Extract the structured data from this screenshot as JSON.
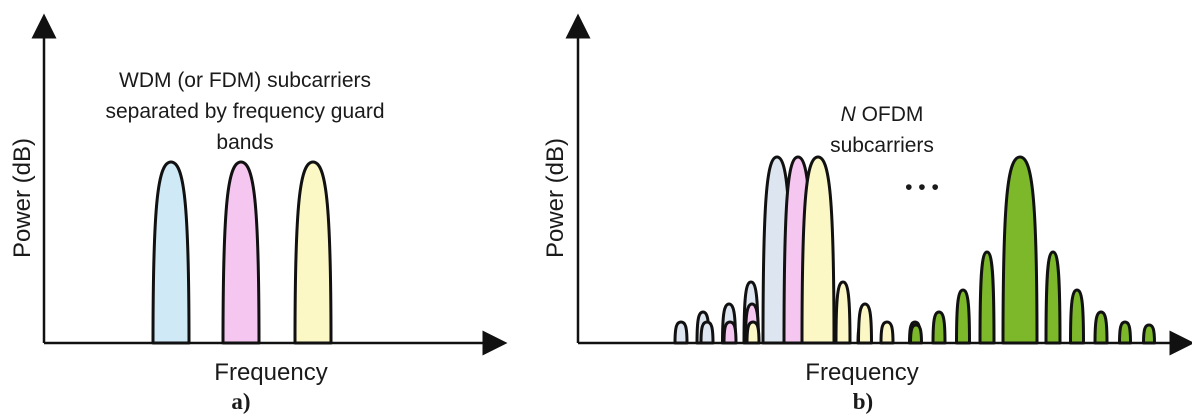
{
  "colors": {
    "blue": "#cfe9f7",
    "pink": "#f4c6f0",
    "yellow": "#fbf8c6",
    "blue_light": "#dde6f0",
    "green": "#7cb82a",
    "outline": "#111111"
  },
  "panel_a": {
    "ylabel": "Power (dB)",
    "xlabel": "Frequency",
    "annotation": [
      "WDM (or FDM) subcarriers",
      "separated by frequency guard",
      "bands"
    ],
    "panel_label": "a)"
  },
  "panel_b": {
    "ylabel": "Power (dB)",
    "xlabel": "Frequency",
    "annotation_n": "N",
    "annotation_line1": " OFDM",
    "annotation_line2": "subcarriers",
    "ellipsis": "• • •",
    "panel_label": "b)"
  }
}
